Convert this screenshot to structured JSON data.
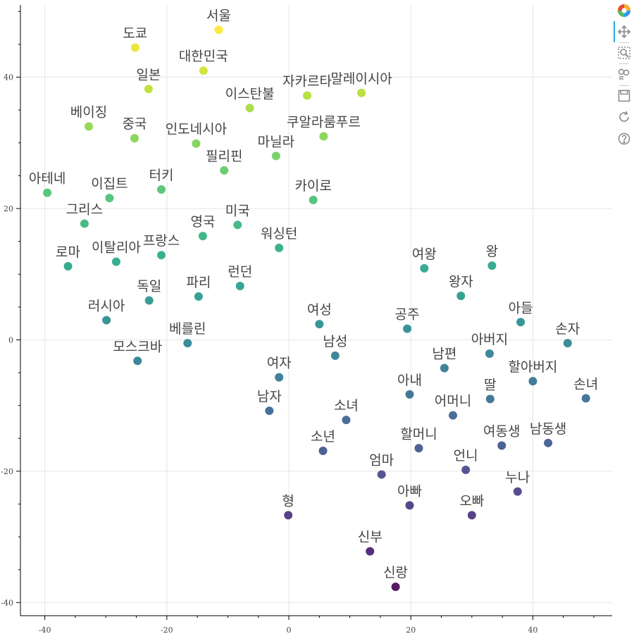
{
  "toolbar": {
    "tools": [
      "bokeh-logo-icon",
      "pan-tool-icon",
      "box-zoom-tool-icon",
      "wheel-zoom-tool-icon",
      "save-tool-icon",
      "reset-tool-icon",
      "help-tool-icon"
    ],
    "active_color": "#26aae1"
  },
  "chart_data": {
    "type": "scatter",
    "title": "",
    "xlabel": "",
    "ylabel": "",
    "xlim": [
      -44,
      53
    ],
    "ylim": [
      -42,
      51
    ],
    "xticks": [
      -40,
      -20,
      0,
      20,
      40
    ],
    "yticks": [
      -40,
      -20,
      0,
      20,
      40
    ],
    "grid": true,
    "colormap": "viridis",
    "points": [
      {
        "label": "서울",
        "x": -11.5,
        "y": 47.2
      },
      {
        "label": "도쿄",
        "x": -25.2,
        "y": 44.5
      },
      {
        "label": "대한민국",
        "x": -14,
        "y": 41
      },
      {
        "label": "일본",
        "x": -23,
        "y": 38.2
      },
      {
        "label": "자카르타",
        "x": 3,
        "y": 37.2
      },
      {
        "label": "말레이시아",
        "x": 11.9,
        "y": 37.6
      },
      {
        "label": "이스탄불",
        "x": -6.4,
        "y": 35.3
      },
      {
        "label": "베이징",
        "x": -32.8,
        "y": 32.5
      },
      {
        "label": "중국",
        "x": -25.3,
        "y": 30.7
      },
      {
        "label": "인도네시아",
        "x": -15.2,
        "y": 29.9
      },
      {
        "label": "쿠알라룸푸르",
        "x": 5.7,
        "y": 31
      },
      {
        "label": "마닐라",
        "x": -2.1,
        "y": 28
      },
      {
        "label": "필리핀",
        "x": -10.6,
        "y": 25.8
      },
      {
        "label": "아테네",
        "x": -39.6,
        "y": 22.4
      },
      {
        "label": "이집트",
        "x": -29.4,
        "y": 21.6
      },
      {
        "label": "터키",
        "x": -20.9,
        "y": 22.9
      },
      {
        "label": "카이로",
        "x": 4,
        "y": 21.3
      },
      {
        "label": "그리스",
        "x": -33.5,
        "y": 17.7
      },
      {
        "label": "미국",
        "x": -8.4,
        "y": 17.5
      },
      {
        "label": "영국",
        "x": -14.1,
        "y": 15.8
      },
      {
        "label": "워싱턴",
        "x": -1.6,
        "y": 14
      },
      {
        "label": "로마",
        "x": -36.2,
        "y": 11.2
      },
      {
        "label": "이탈리아",
        "x": -28.3,
        "y": 11.9
      },
      {
        "label": "프랑스",
        "x": -20.9,
        "y": 12.9
      },
      {
        "label": "여왕",
        "x": 22.2,
        "y": 10.9
      },
      {
        "label": "왕",
        "x": 33.3,
        "y": 11.3
      },
      {
        "label": "파리",
        "x": -14.8,
        "y": 6.6
      },
      {
        "label": "런던",
        "x": -8,
        "y": 8.2
      },
      {
        "label": "왕자",
        "x": 28.2,
        "y": 6.7
      },
      {
        "label": "독일",
        "x": -22.9,
        "y": 6
      },
      {
        "label": "러시아",
        "x": -29.9,
        "y": 3
      },
      {
        "label": "여성",
        "x": 5,
        "y": 2.4
      },
      {
        "label": "공주",
        "x": 19.4,
        "y": 1.7
      },
      {
        "label": "아들",
        "x": 38,
        "y": 2.7
      },
      {
        "label": "베를린",
        "x": -16.6,
        "y": -0.5
      },
      {
        "label": "손자",
        "x": 45.7,
        "y": -0.5
      },
      {
        "label": "모스크바",
        "x": -24.8,
        "y": -3.2
      },
      {
        "label": "남성",
        "x": 7.6,
        "y": -2.4
      },
      {
        "label": "아버지",
        "x": 32.9,
        "y": -2.1
      },
      {
        "label": "남편",
        "x": 25.5,
        "y": -4.3
      },
      {
        "label": "여자",
        "x": -1.6,
        "y": -5.7
      },
      {
        "label": "할아버지",
        "x": 40,
        "y": -6.3
      },
      {
        "label": "아내",
        "x": 19.8,
        "y": -8.3
      },
      {
        "label": "딸",
        "x": 33,
        "y": -9
      },
      {
        "label": "손녀",
        "x": 48.7,
        "y": -8.9
      },
      {
        "label": "남자",
        "x": -3.2,
        "y": -10.8
      },
      {
        "label": "어머니",
        "x": 26.9,
        "y": -11.5
      },
      {
        "label": "소녀",
        "x": 9.4,
        "y": -12.2
      },
      {
        "label": "여동생",
        "x": 34.9,
        "y": -16.1
      },
      {
        "label": "남동생",
        "x": 42.5,
        "y": -15.7
      },
      {
        "label": "할머니",
        "x": 21.3,
        "y": -16.5
      },
      {
        "label": "소년",
        "x": 5.6,
        "y": -16.9
      },
      {
        "label": "언니",
        "x": 29,
        "y": -19.8
      },
      {
        "label": "엄마",
        "x": 15.2,
        "y": -20.5
      },
      {
        "label": "누나",
        "x": 37.5,
        "y": -23.1
      },
      {
        "label": "아빠",
        "x": 19.8,
        "y": -25.2
      },
      {
        "label": "형",
        "x": -0.1,
        "y": -26.7
      },
      {
        "label": "오빠",
        "x": 30,
        "y": -26.7
      },
      {
        "label": "신부",
        "x": 13.3,
        "y": -32.2
      },
      {
        "label": "신랑",
        "x": 17.5,
        "y": -37.6
      }
    ]
  }
}
